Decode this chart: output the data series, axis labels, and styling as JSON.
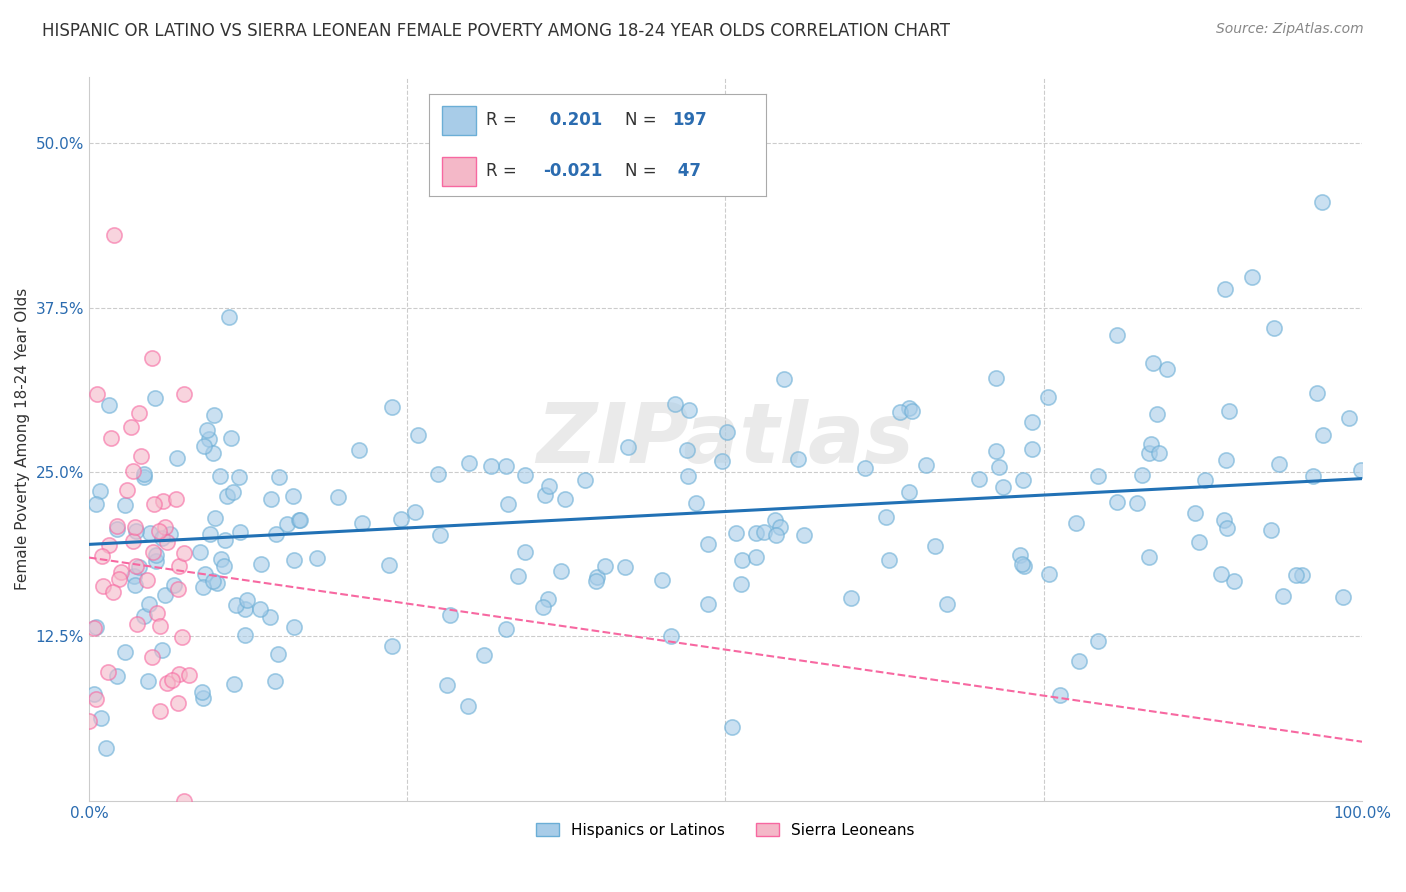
{
  "title": "HISPANIC OR LATINO VS SIERRA LEONEAN FEMALE POVERTY AMONG 18-24 YEAR OLDS CORRELATION CHART",
  "source": "Source: ZipAtlas.com",
  "ylabel": "Female Poverty Among 18-24 Year Olds",
  "background_color": "#ffffff",
  "watermark": "ZIPatlas",
  "blue_R": 0.201,
  "blue_N": 197,
  "pink_R": -0.021,
  "pink_N": 47,
  "blue_color": "#a8cce8",
  "pink_color": "#f4b8c8",
  "blue_edge_color": "#6baed6",
  "pink_edge_color": "#f768a1",
  "blue_line_color": "#2171b5",
  "pink_line_color": "#f768a1",
  "grid_color": "#cccccc",
  "xlim": [
    0.0,
    1.0
  ],
  "ylim": [
    0.0,
    0.55
  ],
  "x_ticks": [
    0.0,
    0.25,
    0.5,
    0.75,
    1.0
  ],
  "y_ticks": [
    0.0,
    0.125,
    0.25,
    0.375,
    0.5
  ],
  "legend_labels": [
    "Hispanics or Latinos",
    "Sierra Leoneans"
  ],
  "title_fontsize": 12,
  "source_fontsize": 10,
  "label_fontsize": 11,
  "tick_fontsize": 11,
  "tick_color": "#2b6cb0"
}
